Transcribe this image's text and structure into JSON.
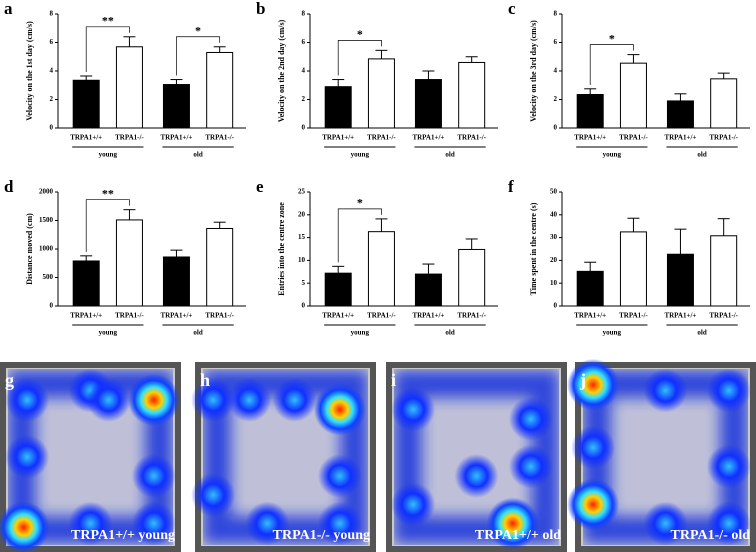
{
  "chart_data": [
    {
      "type": "bar",
      "panel": "a",
      "y_label": "Velocity on the 1st day (cm/s)",
      "categories": [
        "TRPA1+/+",
        "TRPA1-/-",
        "TRPA1+/+",
        "TRPA1-/-"
      ],
      "values": [
        3.35,
        5.7,
        3.05,
        5.3
      ],
      "errors": [
        0.3,
        0.7,
        0.35,
        0.4
      ],
      "colors": [
        "#000000",
        "#ffffff",
        "#000000",
        "#ffffff"
      ],
      "groups": [
        {
          "name": "young",
          "annotation": "**"
        },
        {
          "name": "old",
          "annotation": "*"
        }
      ],
      "ylim": [
        0,
        8
      ],
      "yticks": [
        0,
        2,
        4,
        6,
        8
      ]
    },
    {
      "type": "bar",
      "panel": "b",
      "y_label": "Velocity on the 2nd day (cm/s)",
      "categories": [
        "TRPA1+/+",
        "TRPA1-/-",
        "TRPA1+/+",
        "TRPA1-/-"
      ],
      "values": [
        2.9,
        4.85,
        3.4,
        4.6
      ],
      "errors": [
        0.5,
        0.6,
        0.6,
        0.4
      ],
      "colors": [
        "#000000",
        "#ffffff",
        "#000000",
        "#ffffff"
      ],
      "groups": [
        {
          "name": "young",
          "annotation": "*"
        },
        {
          "name": "old"
        }
      ],
      "ylim": [
        0,
        8
      ],
      "yticks": [
        0,
        2,
        4,
        6,
        8
      ]
    },
    {
      "type": "bar",
      "panel": "c",
      "y_label": "Velocity on the 3rd day (cm/s)",
      "categories": [
        "TRPA1+/+",
        "TRPA1-/-",
        "TRPA1+/+",
        "TRPA1-/-"
      ],
      "values": [
        2.35,
        4.55,
        1.9,
        3.45
      ],
      "errors": [
        0.4,
        0.6,
        0.5,
        0.4
      ],
      "colors": [
        "#000000",
        "#ffffff",
        "#000000",
        "#ffffff"
      ],
      "groups": [
        {
          "name": "young",
          "annotation": "*"
        },
        {
          "name": "old"
        }
      ],
      "ylim": [
        0,
        8
      ],
      "yticks": [
        0,
        2,
        4,
        6,
        8
      ]
    },
    {
      "type": "bar",
      "panel": "d",
      "y_label": "Distance moved (cm)",
      "categories": [
        "TRPA1+/+",
        "TRPA1-/-",
        "TRPA1+/+",
        "TRPA1-/-"
      ],
      "values": [
        790,
        1510,
        860,
        1360
      ],
      "errors": [
        90,
        180,
        120,
        110
      ],
      "colors": [
        "#000000",
        "#ffffff",
        "#000000",
        "#ffffff"
      ],
      "groups": [
        {
          "name": "young",
          "annotation": "**"
        },
        {
          "name": "old"
        }
      ],
      "ylim": [
        0,
        2000
      ],
      "yticks": [
        0,
        500,
        1000,
        1500,
        2000
      ]
    },
    {
      "type": "bar",
      "panel": "e",
      "y_label": "Entries into the centre zone",
      "categories": [
        "TRPA1+/+",
        "TRPA1-/-",
        "TRPA1+/+",
        "TRPA1-/-"
      ],
      "values": [
        7.2,
        16.3,
        7.0,
        12.4
      ],
      "errors": [
        1.5,
        2.8,
        2.2,
        2.3
      ],
      "colors": [
        "#000000",
        "#ffffff",
        "#000000",
        "#ffffff"
      ],
      "groups": [
        {
          "name": "young",
          "annotation": "*"
        },
        {
          "name": "old"
        }
      ],
      "ylim": [
        0,
        25
      ],
      "yticks": [
        0,
        5,
        10,
        15,
        20,
        25
      ]
    },
    {
      "type": "bar",
      "panel": "f",
      "y_label": "Time spent in the centre (s)",
      "categories": [
        "TRPA1+/+",
        "TRPA1-/-",
        "TRPA1+/+",
        "TRPA1-/-"
      ],
      "values": [
        15.2,
        32.5,
        22.7,
        30.8
      ],
      "errors": [
        4,
        6,
        11,
        7.5
      ],
      "colors": [
        "#000000",
        "#ffffff",
        "#000000",
        "#ffffff"
      ],
      "groups": [
        {
          "name": "young"
        },
        {
          "name": "old"
        }
      ],
      "ylim": [
        0,
        50
      ],
      "yticks": [
        0,
        10,
        20,
        30,
        40,
        50
      ]
    }
  ],
  "heatmaps": [
    {
      "panel": "g",
      "label": "TRPA1+/+ young"
    },
    {
      "panel": "h",
      "label": "TRPA1-/- young"
    },
    {
      "panel": "i",
      "label": "TRPA1+/+ old"
    },
    {
      "panel": "j",
      "label": "TRPA1-/- old"
    }
  ]
}
